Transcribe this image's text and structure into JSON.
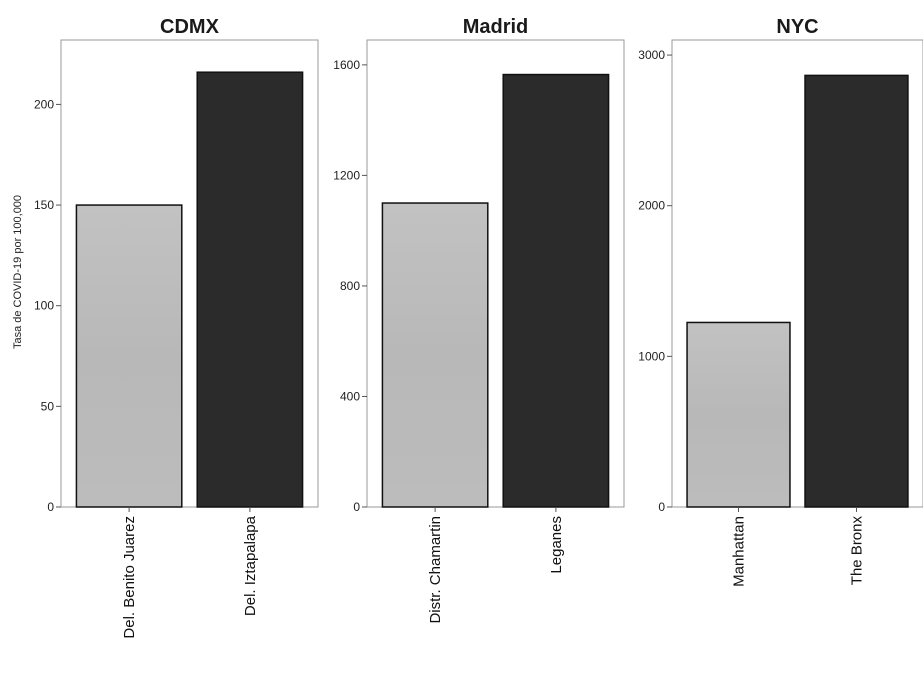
{
  "chart_data": {
    "type": "bar",
    "ylabel": "Tasa de COVID-19 por 100,000",
    "colors": {
      "low": "#bcbcbc",
      "high": "#2b2b2b"
    },
    "panels": [
      {
        "title": "CDMX",
        "categories": [
          "Del. Benito Juarez",
          "Del. Iztapalapa"
        ],
        "values": [
          150,
          216
        ],
        "ylim": [
          0,
          232
        ],
        "yticks": [
          0,
          50,
          100,
          150,
          200
        ]
      },
      {
        "title": "Madrid",
        "categories": [
          "Distr. Chamartin",
          "Leganes"
        ],
        "values": [
          1100,
          1565
        ],
        "ylim": [
          0,
          1690
        ],
        "yticks": [
          0,
          400,
          800,
          1200,
          1600
        ]
      },
      {
        "title": "NYC",
        "categories": [
          "Manhattan",
          "The Bronx"
        ],
        "values": [
          1225,
          2865
        ],
        "ylim": [
          0,
          3100
        ],
        "yticks": [
          0,
          1000,
          2000,
          3000
        ]
      }
    ]
  }
}
